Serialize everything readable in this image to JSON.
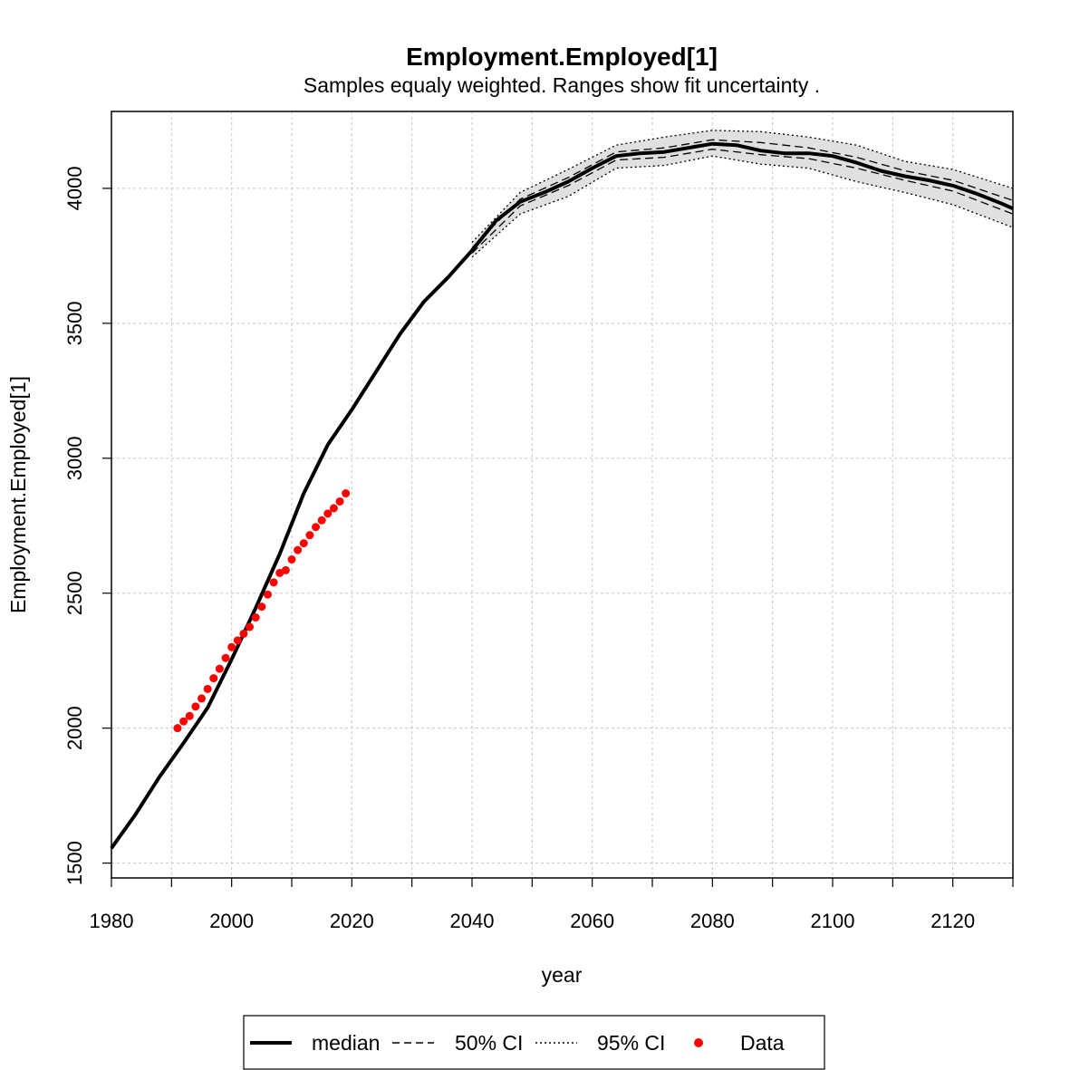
{
  "chart_data": {
    "type": "line",
    "title": "Employment.Employed[1]",
    "subtitle": "Samples equaly weighted. Ranges show  fit uncertainty .",
    "xlabel": "year",
    "ylabel": "Employment.Employed[1]",
    "xlim": [
      1980,
      2130
    ],
    "ylim": [
      1445,
      4285
    ],
    "x_ticks": [
      1980,
      2000,
      2020,
      2040,
      2060,
      2080,
      2100,
      2120
    ],
    "y_ticks": [
      1500,
      2000,
      2500,
      3000,
      3500,
      4000
    ],
    "grid": true,
    "legend_position": "bottom",
    "legend": [
      {
        "label": "median",
        "style": "solid-thick"
      },
      {
        "label": "50% CI",
        "style": "dashed"
      },
      {
        "label": "95% CI",
        "style": "dotted"
      },
      {
        "label": "Data",
        "style": "point",
        "color": "#ff0000"
      }
    ],
    "colors": {
      "line": "#000000",
      "band": "#e0e0e0",
      "data": "#ff0000",
      "grid": "#c8c8c8"
    },
    "series": [
      {
        "name": "median",
        "x": [
          1980,
          1984,
          1988,
          1992,
          1996,
          2000,
          2004,
          2008,
          2012,
          2016,
          2020,
          2024,
          2028,
          2032,
          2036,
          2040,
          2044,
          2048,
          2052,
          2056,
          2060,
          2064,
          2068,
          2072,
          2076,
          2080,
          2084,
          2088,
          2092,
          2096,
          2100,
          2104,
          2108,
          2112,
          2116,
          2120,
          2124,
          2128,
          2130
        ],
        "y": [
          1555,
          1680,
          1820,
          1945,
          2075,
          2255,
          2445,
          2645,
          2870,
          3050,
          3180,
          3320,
          3460,
          3580,
          3670,
          3770,
          3880,
          3950,
          3985,
          4025,
          4075,
          4120,
          4130,
          4135,
          4150,
          4165,
          4160,
          4140,
          4130,
          4130,
          4120,
          4095,
          4065,
          4045,
          4030,
          4010,
          3980,
          3945,
          3925
        ]
      },
      {
        "name": "50% CI lower",
        "x": [
          2040,
          2048,
          2056,
          2064,
          2072,
          2080,
          2088,
          2096,
          2104,
          2112,
          2120,
          2130
        ],
        "y": [
          3760,
          3935,
          4010,
          4105,
          4115,
          4145,
          4125,
          4110,
          4075,
          4030,
          3990,
          3905
        ]
      },
      {
        "name": "50% CI upper",
        "x": [
          2040,
          2048,
          2056,
          2064,
          2072,
          2080,
          2088,
          2096,
          2104,
          2112,
          2120,
          2130
        ],
        "y": [
          3780,
          3960,
          4040,
          4135,
          4150,
          4180,
          4170,
          4150,
          4115,
          4065,
          4030,
          3955
        ]
      },
      {
        "name": "95% CI lower",
        "x": [
          2040,
          2048,
          2056,
          2064,
          2072,
          2080,
          2088,
          2096,
          2104,
          2112,
          2120,
          2130
        ],
        "y": [
          3745,
          3905,
          3970,
          4075,
          4085,
          4120,
          4090,
          4075,
          4025,
          3985,
          3940,
          3855
        ]
      },
      {
        "name": "95% CI upper",
        "x": [
          2040,
          2048,
          2056,
          2064,
          2072,
          2080,
          2088,
          2096,
          2104,
          2112,
          2120,
          2130
        ],
        "y": [
          3800,
          3985,
          4070,
          4160,
          4190,
          4215,
          4210,
          4190,
          4160,
          4100,
          4070,
          4000
        ]
      },
      {
        "name": "Data",
        "x": [
          1991,
          1992,
          1993,
          1994,
          1995,
          1996,
          1997,
          1998,
          1999,
          2000,
          2001,
          2002,
          2003,
          2004,
          2005,
          2006,
          2007,
          2008,
          2009,
          2010,
          2011,
          2012,
          2013,
          2014,
          2015,
          2016,
          2017,
          2018,
          2019
        ],
        "y": [
          2000,
          2025,
          2045,
          2080,
          2110,
          2145,
          2185,
          2220,
          2260,
          2300,
          2325,
          2350,
          2375,
          2410,
          2450,
          2495,
          2540,
          2575,
          2585,
          2625,
          2660,
          2685,
          2715,
          2745,
          2770,
          2795,
          2815,
          2840,
          2870
        ]
      }
    ]
  }
}
